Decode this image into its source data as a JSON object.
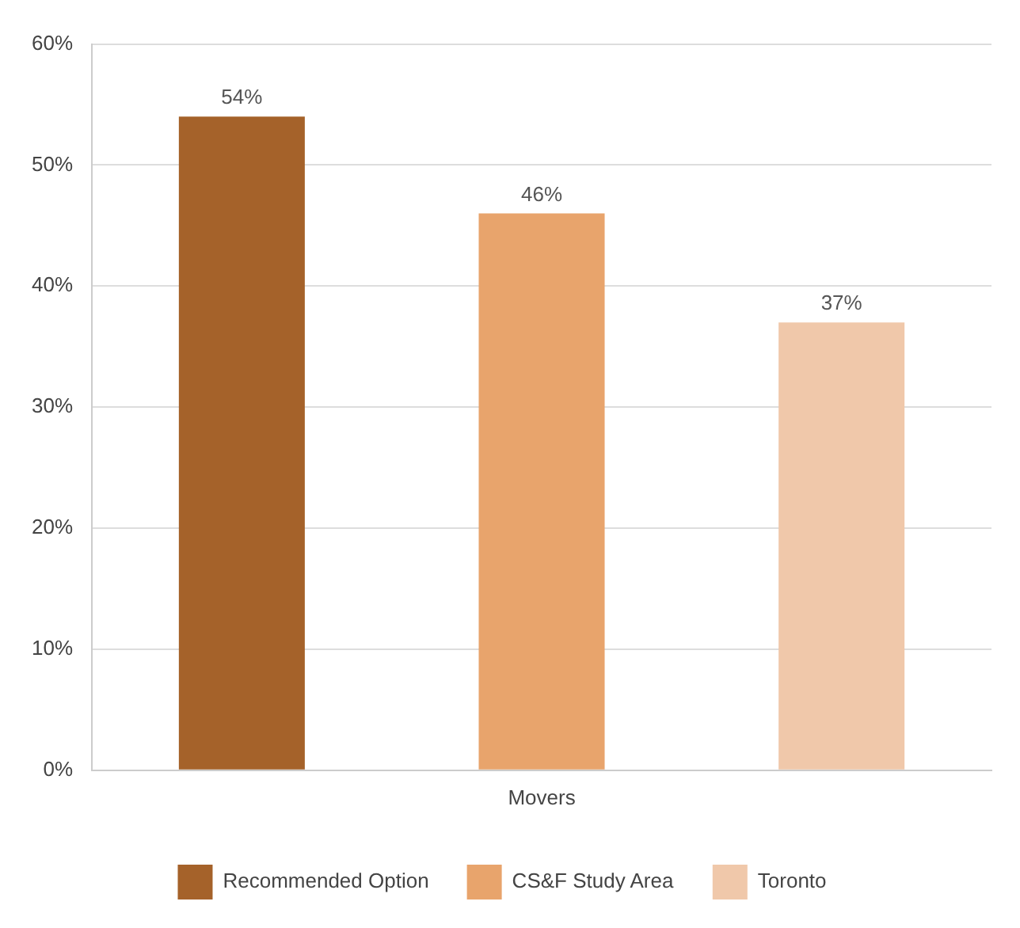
{
  "chart_data": {
    "type": "bar",
    "categories": [
      "Movers"
    ],
    "series": [
      {
        "name": "Recommended Option",
        "color": "#a5622a",
        "values": [
          54
        ],
        "value_labels": [
          "54%"
        ]
      },
      {
        "name": "CS&F Study Area",
        "color": "#e8a46c",
        "values": [
          46
        ],
        "value_labels": [
          "46%"
        ]
      },
      {
        "name": "Toronto",
        "color": "#f0c8aa",
        "values": [
          37
        ],
        "value_labels": [
          "37%"
        ]
      }
    ],
    "ylim": [
      0,
      60
    ],
    "yticks": [
      {
        "value": 0,
        "label": "0%"
      },
      {
        "value": 10,
        "label": "10%"
      },
      {
        "value": 20,
        "label": "20%"
      },
      {
        "value": 30,
        "label": "30%"
      },
      {
        "value": 40,
        "label": "40%"
      },
      {
        "value": 50,
        "label": "50%"
      },
      {
        "value": 60,
        "label": "60%"
      }
    ],
    "grid": "y",
    "legend": "bottom"
  }
}
